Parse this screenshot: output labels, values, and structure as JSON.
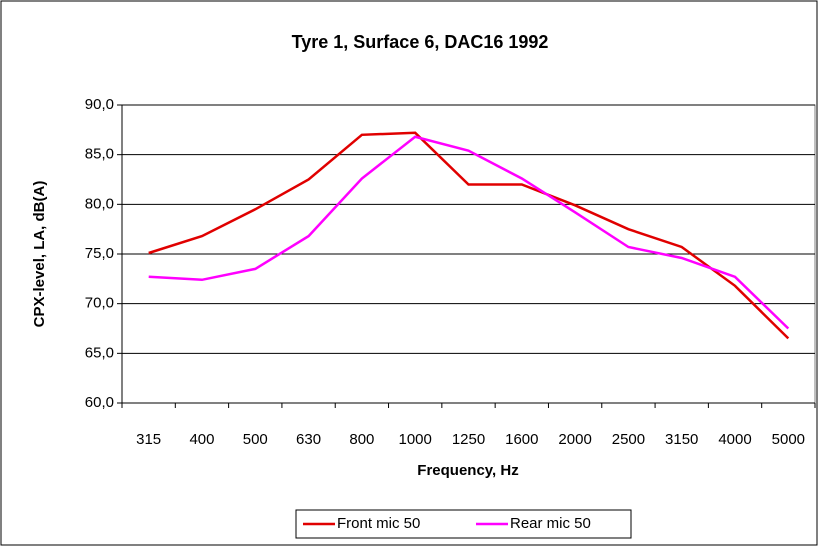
{
  "chart_data": {
    "type": "line",
    "title": "Tyre 1, Surface 6, DAC16 1992",
    "x_label": "Frequency, Hz",
    "y_label": "CPX-level, LA, dB(A)",
    "categories": [
      "315",
      "400",
      "500",
      "630",
      "800",
      "1000",
      "1250",
      "1600",
      "2000",
      "2500",
      "3150",
      "4000",
      "5000"
    ],
    "series": [
      {
        "name": "Front mic 50",
        "color": "#e00000",
        "values": [
          75.1,
          76.8,
          79.5,
          82.5,
          87.0,
          87.2,
          82.0,
          82.0,
          79.9,
          77.5,
          75.7,
          71.8,
          66.5
        ]
      },
      {
        "name": "Rear mic 50",
        "color": "#ff00ff",
        "values": [
          72.7,
          72.4,
          73.5,
          76.8,
          82.6,
          86.8,
          85.4,
          82.6,
          79.2,
          75.7,
          74.6,
          72.7,
          67.5
        ]
      }
    ],
    "ylim": [
      60,
      90
    ],
    "yticks": [
      {
        "value": 60,
        "label": "60,0"
      },
      {
        "value": 65,
        "label": "65,0"
      },
      {
        "value": 70,
        "label": "70,0"
      },
      {
        "value": 75,
        "label": "75,0"
      },
      {
        "value": 80,
        "label": "80,0"
      },
      {
        "value": 85,
        "label": "85,0"
      },
      {
        "value": 90,
        "label": "90,0"
      }
    ],
    "grid": true,
    "legend": "bottom"
  }
}
